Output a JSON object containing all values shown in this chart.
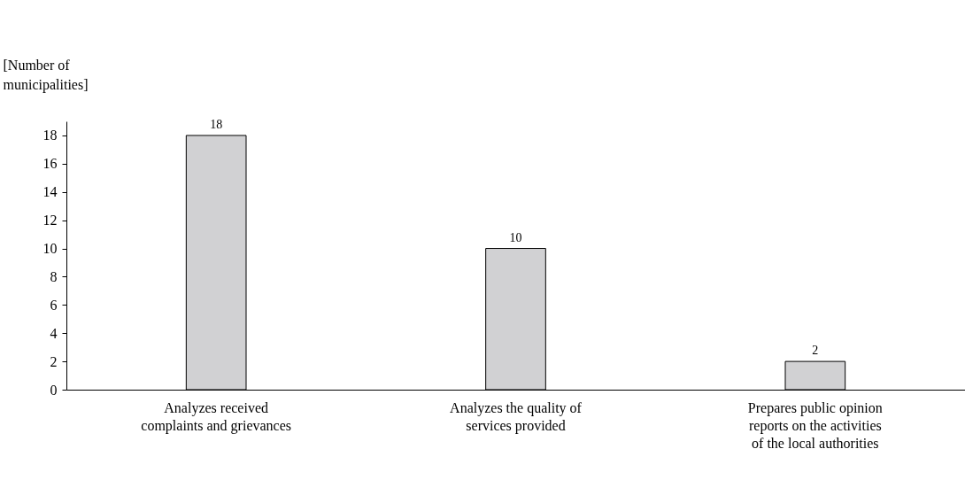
{
  "chart_data": {
    "type": "bar",
    "ylabel": "[Number of municipalities]",
    "categories": [
      "Analyzes received complaints and grievances",
      "Analyzes the quality of services provided",
      "Prepares public opinion reports on the activities of the local authorities"
    ],
    "values": [
      18,
      10,
      2
    ],
    "color": "#d1d1d3",
    "ylim": [
      0,
      19
    ],
    "yticks": [
      0,
      2,
      4,
      6,
      8,
      10,
      12,
      14,
      16,
      18
    ],
    "grid": false,
    "data_labels": true
  }
}
